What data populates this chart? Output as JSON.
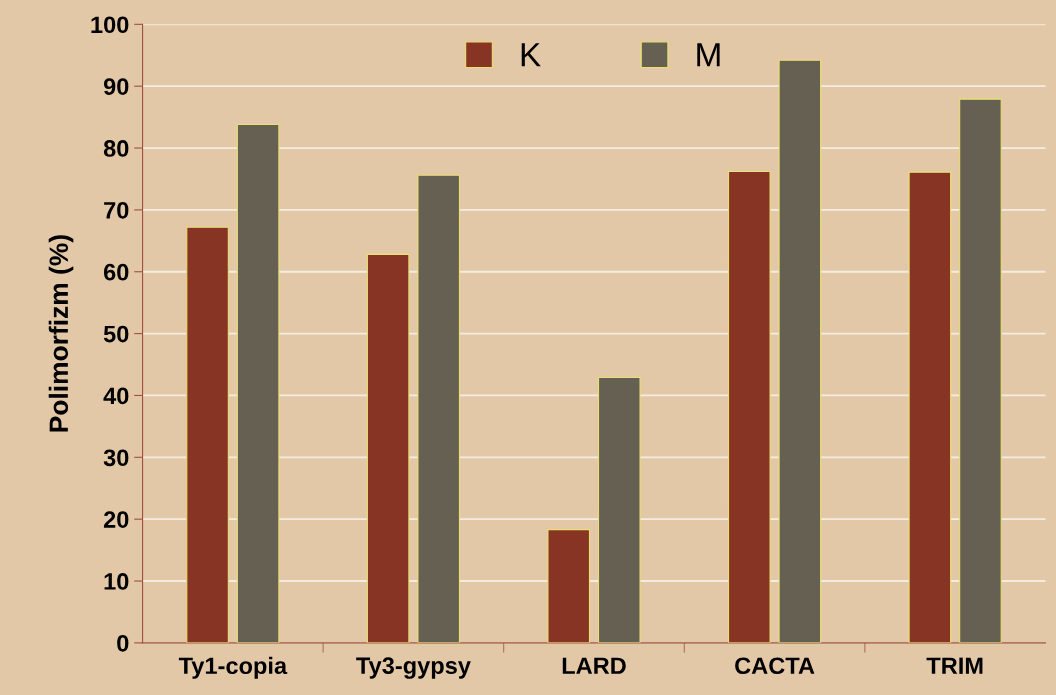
{
  "chart_data": {
    "type": "bar",
    "ylabel": "Polimorfizm (%)",
    "categories": [
      "Ty1-copia",
      "Ty3-gypsy",
      "LARD",
      "CACTA",
      "TRIM"
    ],
    "series": [
      {
        "name": "K",
        "color": "#873424",
        "values": [
          67.2,
          62.8,
          18.3,
          76.2,
          76.1
        ]
      },
      {
        "name": "M",
        "color": "#666052",
        "values": [
          83.8,
          75.6,
          42.9,
          94.2,
          87.9
        ]
      }
    ],
    "ylim": [
      0,
      100
    ],
    "yticks": [
      0,
      10,
      20,
      30,
      40,
      50,
      60,
      70,
      80,
      90,
      100
    ],
    "grid": "y",
    "legend": "top"
  }
}
